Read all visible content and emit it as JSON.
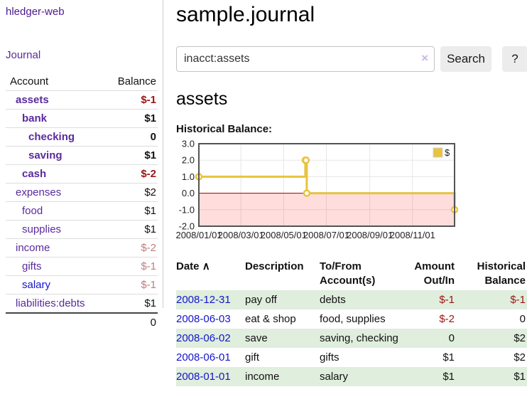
{
  "app": {
    "brand": "hledger-web"
  },
  "sidebar": {
    "journal_link": "Journal",
    "accounts_table": {
      "headers": {
        "account": "Account",
        "balance": "Balance"
      },
      "rows": [
        {
          "name": "assets",
          "indent": 1,
          "bold": true,
          "balance": "$-1",
          "balance_style": "neg-strong"
        },
        {
          "name": "bank",
          "indent": 2,
          "bold": true,
          "balance": "$1",
          "balance_style": "pos"
        },
        {
          "name": "checking",
          "indent": 3,
          "bold": true,
          "balance": "0",
          "balance_style": "pos"
        },
        {
          "name": "saving",
          "indent": 3,
          "bold": true,
          "balance": "$1",
          "balance_style": "pos"
        },
        {
          "name": "cash",
          "indent": 2,
          "bold": true,
          "balance": "$-2",
          "balance_style": "neg-strong"
        },
        {
          "name": "expenses",
          "indent": 1,
          "bold": false,
          "balance": "$2",
          "balance_style": "pos"
        },
        {
          "name": "food",
          "indent": 2,
          "bold": false,
          "balance": "$1",
          "balance_style": "pos"
        },
        {
          "name": "supplies",
          "indent": 2,
          "bold": false,
          "balance": "$1",
          "balance_style": "pos"
        },
        {
          "name": "income",
          "indent": 1,
          "bold": false,
          "balance": "$-2",
          "balance_style": "neg-soft"
        },
        {
          "name": "gifts",
          "indent": 2,
          "bold": false,
          "balance": "$-1",
          "balance_style": "neg-soft"
        },
        {
          "name": "salary",
          "indent": 2,
          "bold": false,
          "balance": "$-1",
          "balance_style": "neg-soft",
          "link_style": "blue"
        },
        {
          "name": "liabilities:debts",
          "indent": 1,
          "bold": false,
          "balance": "$1",
          "balance_style": "pos"
        }
      ],
      "total": "0"
    }
  },
  "header": {
    "title": "sample.journal"
  },
  "search": {
    "value": "inacct:assets",
    "clear_icon": "×",
    "button_label": "Search",
    "help_label": "?"
  },
  "main": {
    "account_heading": "assets",
    "chart_label": "Historical Balance:"
  },
  "chart_data": {
    "type": "line",
    "title": "Historical Balance",
    "step": true,
    "x_range": [
      "2008-01-01",
      "2008-12-31"
    ],
    "ylim": [
      -2,
      3
    ],
    "y_ticks": [
      "3.0",
      "2.0",
      "1.0",
      "0.0",
      "-1.0",
      "-2.0"
    ],
    "x_ticks": [
      {
        "date": "2008-01-01",
        "label": "2008/01/01"
      },
      {
        "date": "2008-03-01",
        "label": "2008/03/01"
      },
      {
        "date": "2008-05-01",
        "label": "2008/05/01"
      },
      {
        "date": "2008-07-01",
        "label": "2008/07/01"
      },
      {
        "date": "2008-09-01",
        "label": "2008/09/01"
      },
      {
        "date": "2008-11-01",
        "label": "2008/11/01"
      }
    ],
    "legend": [
      {
        "label": "$",
        "color": "#e8c33f"
      }
    ],
    "series": [
      {
        "name": "$",
        "points": [
          [
            "2008-01-01",
            1
          ],
          [
            "2008-06-01",
            2
          ],
          [
            "2008-06-02",
            2
          ],
          [
            "2008-06-03",
            0
          ],
          [
            "2008-12-31",
            -1
          ]
        ]
      }
    ],
    "colors": {
      "line": "#e8c33f",
      "marker_fill": "#ffffff",
      "negative_area": "rgba(255,0,0,0.133)",
      "zero_line": "#a00000",
      "grid": "#e6e6e6",
      "border": "#545454",
      "legend_box_border": "#d0d0d0"
    }
  },
  "register_table": {
    "headers": {
      "date": "Date",
      "sort_icon": "∧",
      "description": "Description",
      "accounts": "To/From Account(s)",
      "amount": "Amount Out/In",
      "balance": "Historical Balance"
    },
    "rows": [
      {
        "date": "2008-12-31",
        "description": "pay off",
        "accounts": "debts",
        "amount": "$-1",
        "amount_neg": true,
        "balance": "$-1",
        "balance_neg": true,
        "shaded": true
      },
      {
        "date": "2008-06-03",
        "description": "eat & shop",
        "accounts": "food, supplies",
        "amount": "$-2",
        "amount_neg": true,
        "balance": "0",
        "balance_neg": false,
        "shaded": false
      },
      {
        "date": "2008-06-02",
        "description": "save",
        "accounts": "saving, checking",
        "amount": "0",
        "amount_neg": false,
        "balance": "$2",
        "balance_neg": false,
        "shaded": true
      },
      {
        "date": "2008-06-01",
        "description": "gift",
        "accounts": "gifts",
        "amount": "$1",
        "amount_neg": false,
        "balance": "$2",
        "balance_neg": false,
        "shaded": false
      },
      {
        "date": "2008-01-01",
        "description": "income",
        "accounts": "salary",
        "amount": "$1",
        "amount_neg": false,
        "balance": "$1",
        "balance_neg": false,
        "shaded": true
      }
    ]
  }
}
